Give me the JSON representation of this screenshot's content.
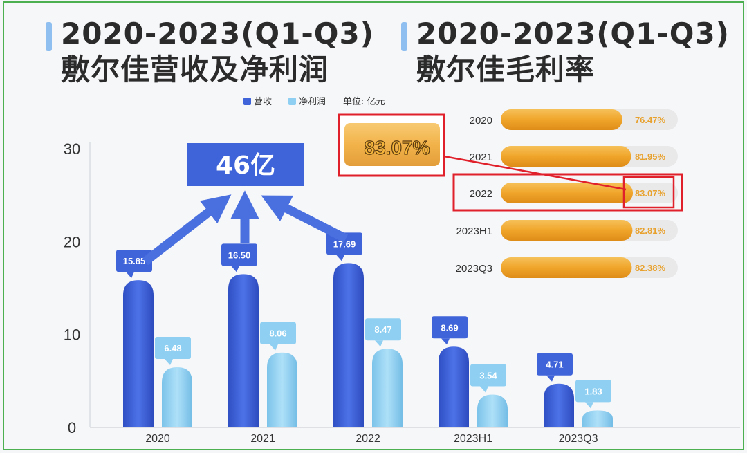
{
  "left_title": {
    "line1": "2020-2023(Q1-Q3)",
    "line2": "敷尔佳营收及净利润"
  },
  "right_title": {
    "line1": "2020-2023(Q1-Q3)",
    "line2": "敷尔佳毛利率"
  },
  "callout_total": "46亿",
  "callout_highlight": "83.07%",
  "colors": {
    "revenue": "#3f63d9",
    "net_profit": "#8fd0f2",
    "margin_bar": "#f0a830",
    "highlight_box": "#e0202a",
    "arrow": "#4a70e0"
  },
  "chart_data": [
    {
      "type": "bar",
      "legend": {
        "items": [
          "营收",
          "净利润"
        ],
        "unit": "单位: 亿元",
        "placement": "top"
      },
      "categories": [
        "2020",
        "2021",
        "2022",
        "2023H1",
        "2023Q3"
      ],
      "series": [
        {
          "name": "营收",
          "values": [
            15.85,
            16.5,
            17.69,
            8.69,
            4.71
          ],
          "labels": [
            "15.85",
            "16.50",
            "17.69",
            "8.69",
            "4.71"
          ]
        },
        {
          "name": "净利润",
          "values": [
            6.48,
            8.06,
            8.47,
            3.54,
            1.83
          ],
          "labels": [
            "6.48",
            "8.06",
            "8.47",
            "3.54",
            "1.83"
          ]
        }
      ],
      "yticks": [
        "0",
        "10",
        "20",
        "30"
      ],
      "ylim": [
        0,
        30
      ]
    },
    {
      "type": "bar",
      "orientation": "horizontal",
      "categories": [
        "2020",
        "2021",
        "2022",
        "2023H1",
        "2023Q3"
      ],
      "values": [
        76.47,
        81.95,
        83.07,
        82.81,
        82.38
      ],
      "labels": [
        "76.47%",
        "81.95%",
        "83.07%",
        "82.81%",
        "82.38%"
      ],
      "highlight_index": 2
    }
  ]
}
